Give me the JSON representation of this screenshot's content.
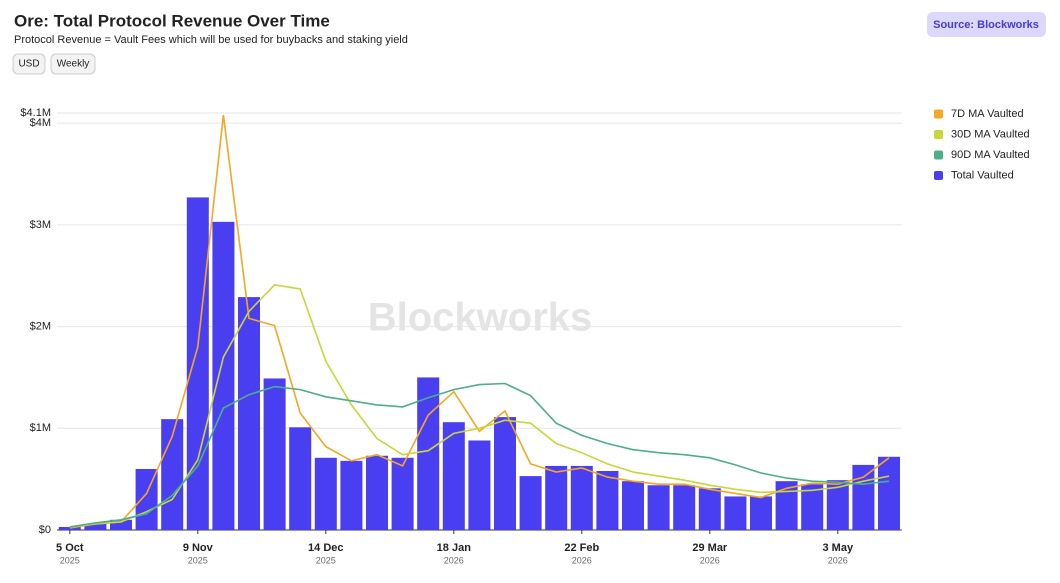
{
  "chart_data": {
    "type": "combo",
    "title": "Ore: Total Protocol Revenue Over Time",
    "subtitle": "Protocol Revenue = Vault Fees which will be used for buybacks and staking yield",
    "buttons": [
      "USD",
      "Weekly"
    ],
    "source": "Source: Blockworks",
    "watermark": "Blockworks",
    "categories": [
      "5 Oct",
      null,
      null,
      null,
      null,
      "9 Nov",
      null,
      null,
      null,
      null,
      "14 Dec",
      null,
      null,
      null,
      null,
      "18 Jan",
      null,
      null,
      null,
      null,
      "22 Feb",
      null,
      null,
      null,
      null,
      "29 Mar",
      null,
      null,
      null,
      null,
      "3 May",
      null,
      null
    ],
    "category_years": [
      "2025",
      null,
      null,
      null,
      null,
      "2025",
      null,
      null,
      null,
      null,
      "2025",
      null,
      null,
      null,
      null,
      "2026",
      null,
      null,
      null,
      null,
      "2026",
      null,
      null,
      null,
      null,
      "2026",
      null,
      null,
      null,
      null,
      "2026",
      null,
      null
    ],
    "ylim": [
      0,
      4100000
    ],
    "yticks": [
      {
        "value": 0,
        "label": "$0"
      },
      {
        "value": 1000000,
        "label": "$1M"
      },
      {
        "value": 2000000,
        "label": "$2M"
      },
      {
        "value": 3000000,
        "label": "$3M"
      },
      {
        "value": 4000000,
        "label": "$4M"
      },
      {
        "value": 4100000,
        "label": "$4.1M"
      }
    ],
    "grid": true,
    "legend": "right",
    "series": [
      {
        "name": "7D MA Vaulted",
        "type": "line",
        "color": "#f5a623",
        "values": [
          20000,
          60000,
          80000,
          360000,
          920000,
          1800000,
          4080000,
          2080000,
          2010000,
          1150000,
          820000,
          680000,
          740000,
          630000,
          1130000,
          1360000,
          970000,
          1170000,
          650000,
          570000,
          610000,
          520000,
          480000,
          450000,
          450000,
          400000,
          360000,
          320000,
          410000,
          460000,
          450000,
          520000,
          710000
        ]
      },
      {
        "name": "30D MA Vaulted",
        "type": "line",
        "color": "#c9d63a",
        "values": [
          30000,
          60000,
          80000,
          180000,
          300000,
          690000,
          1700000,
          2150000,
          2410000,
          2370000,
          1660000,
          1230000,
          900000,
          740000,
          780000,
          950000,
          1000000,
          1080000,
          1050000,
          850000,
          760000,
          650000,
          570000,
          530000,
          490000,
          440000,
          400000,
          370000,
          380000,
          390000,
          420000,
          480000,
          530000
        ]
      },
      {
        "name": "90D MA Vaulted",
        "type": "line",
        "color": "#4caf8a",
        "values": [
          30000,
          70000,
          100000,
          160000,
          340000,
          630000,
          1200000,
          1330000,
          1410000,
          1380000,
          1310000,
          1270000,
          1230000,
          1210000,
          1300000,
          1380000,
          1430000,
          1440000,
          1320000,
          1050000,
          930000,
          850000,
          790000,
          760000,
          740000,
          710000,
          640000,
          560000,
          510000,
          480000,
          470000,
          450000,
          480000
        ]
      },
      {
        "name": "Total Vaulted",
        "type": "bar",
        "color": "#4a3ff0",
        "values": [
          30000,
          60000,
          100000,
          600000,
          1090000,
          3270000,
          3030000,
          2290000,
          1490000,
          1010000,
          710000,
          680000,
          730000,
          710000,
          1500000,
          1060000,
          880000,
          1110000,
          530000,
          630000,
          630000,
          580000,
          480000,
          440000,
          440000,
          410000,
          330000,
          330000,
          480000,
          450000,
          490000,
          640000,
          720000
        ]
      }
    ]
  }
}
